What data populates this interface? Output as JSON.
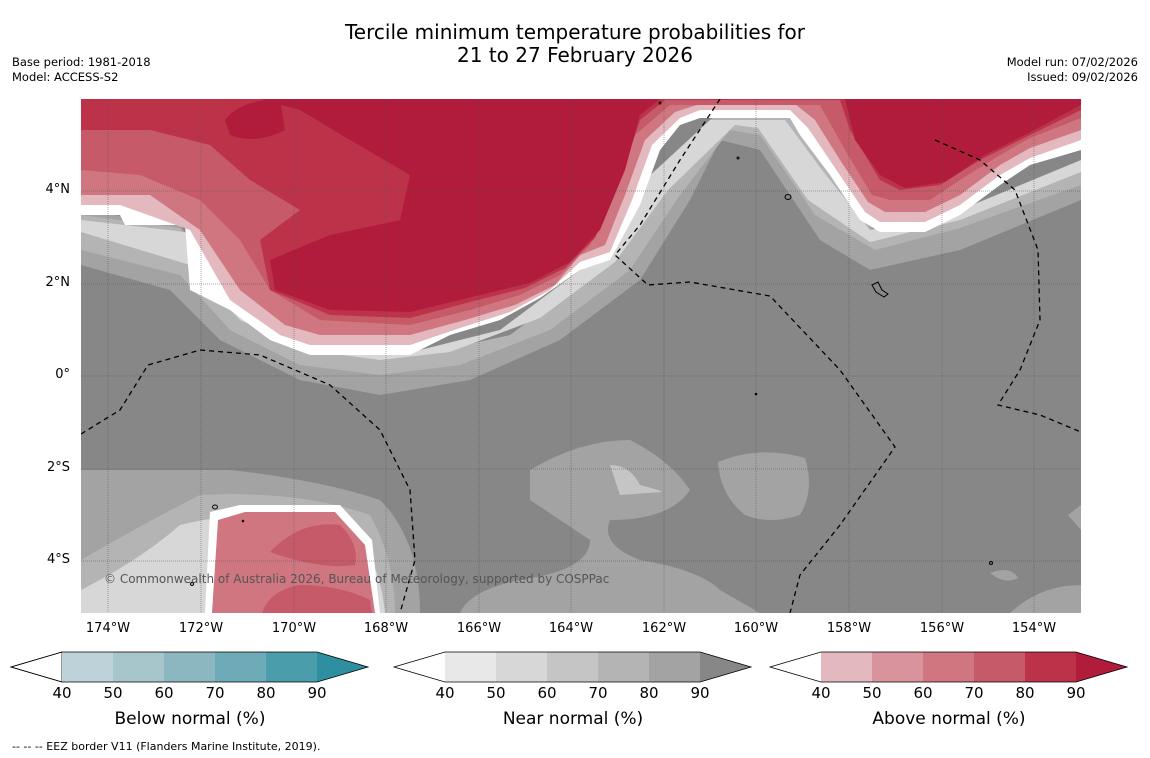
{
  "title_line1": "Tercile minimum temperature probabilities for",
  "title_line2": "21 to 27 February 2026",
  "meta_left": {
    "base_period": "Base period: 1981-2018",
    "model": "Model: ACCESS-S2"
  },
  "meta_right": {
    "model_run": "Model run: 07/02/2026",
    "issued": "Issued: 09/02/2026"
  },
  "latitude_labels": [
    "4°N",
    "2°N",
    "0°",
    "2°S",
    "4°S"
  ],
  "longitude_labels": [
    "174°W",
    "172°W",
    "170°W",
    "168°W",
    "166°W",
    "164°W",
    "162°W",
    "160°W",
    "158°W",
    "156°W",
    "154°W"
  ],
  "copyright": "© Commonwealth of Australia 2026, Bureau of Meteorology, supported by COSPPac",
  "footer": "--  --  -- EEZ border V11 (Flanders Marine Institute, 2019).",
  "colorbars": [
    {
      "title": "Below normal (%)",
      "ticks": [
        "40",
        "50",
        "60",
        "70",
        "80",
        "90"
      ],
      "colors": [
        "#ffffff",
        "#bdd3d9",
        "#a6c6cb",
        "#8cb7c1",
        "#6eabb8",
        "#4a9eab",
        "#2e8fa0"
      ]
    },
    {
      "title": "Near normal (%)",
      "ticks": [
        "40",
        "50",
        "60",
        "70",
        "80",
        "90"
      ],
      "colors": [
        "#ffffff",
        "#e8e8e8",
        "#d7d7d7",
        "#c5c5c5",
        "#b4b4b4",
        "#a3a3a3",
        "#878787"
      ]
    },
    {
      "title": "Above normal (%)",
      "ticks": [
        "40",
        "50",
        "60",
        "70",
        "80",
        "90"
      ],
      "colors": [
        "#ffffff",
        "#e3b8be",
        "#d9939c",
        "#cf7680",
        "#c65a68",
        "#bc3349",
        "#b21c3c"
      ]
    }
  ]
}
